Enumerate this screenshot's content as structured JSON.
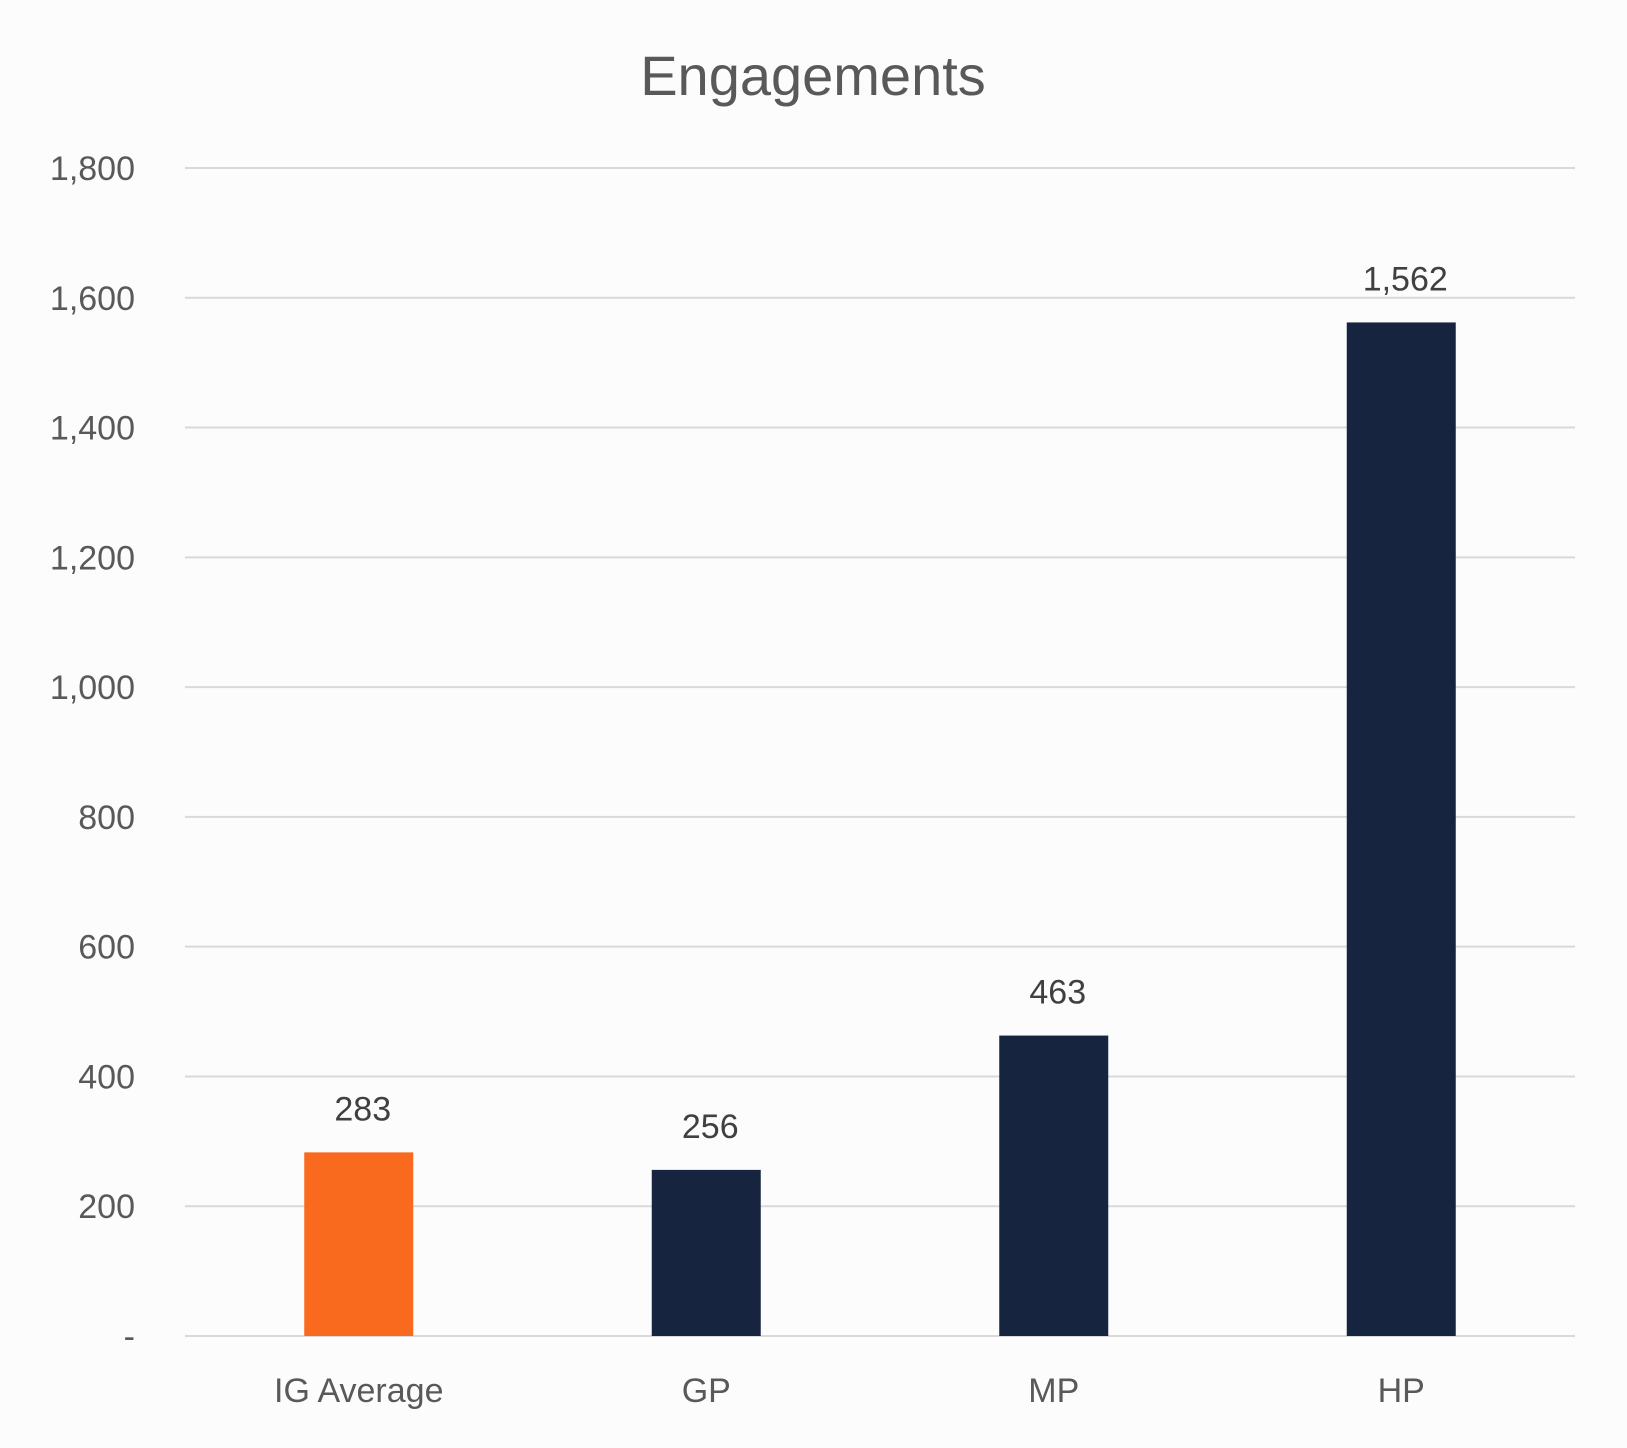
{
  "chart_data": {
    "type": "bar",
    "title": "Engagements",
    "xlabel": "",
    "ylabel": "",
    "categories": [
      "IG Average",
      "GP",
      "MP",
      "HP"
    ],
    "values": [
      283,
      256,
      463,
      1562
    ],
    "value_labels": [
      "283",
      "256",
      "463",
      "1,562"
    ],
    "ylim": [
      0,
      1800
    ],
    "y_ticks": [
      0,
      200,
      400,
      600,
      800,
      1000,
      1200,
      1400,
      1600,
      1800
    ],
    "y_tick_labels": [
      "-",
      "200",
      "400",
      "600",
      "800",
      "1,000",
      "1,200",
      "1,400",
      "1,600",
      "1,800"
    ],
    "grid": true,
    "legend": "none",
    "colors": [
      "#f96a1f",
      "#172440",
      "#172440",
      "#172440"
    ]
  }
}
